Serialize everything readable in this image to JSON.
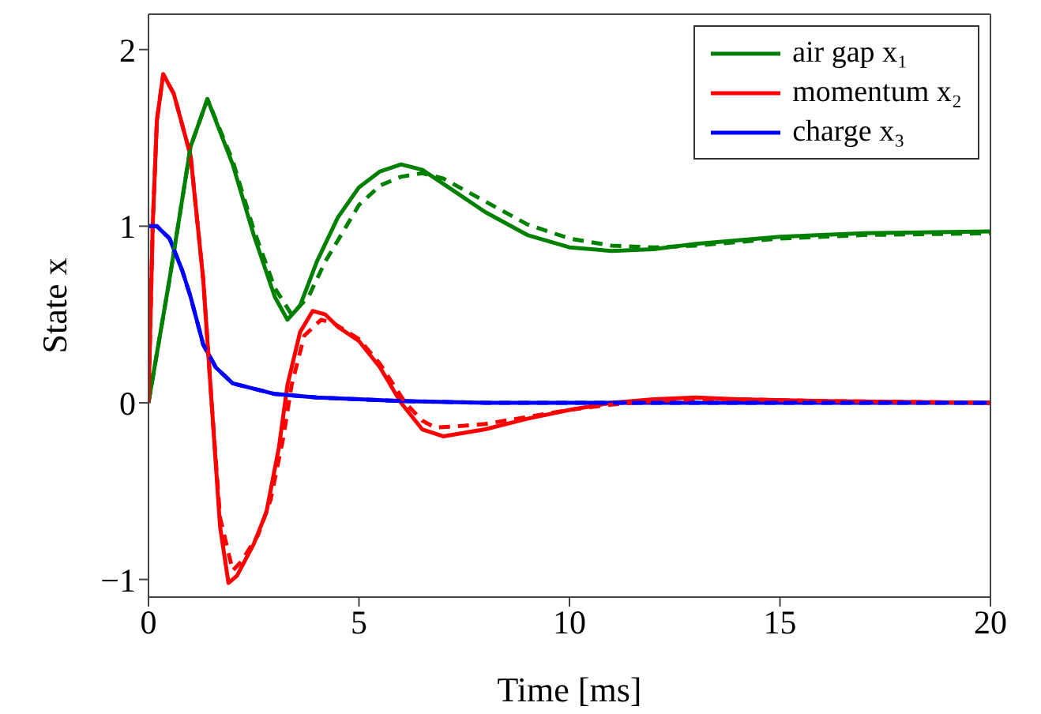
{
  "chart_data": {
    "type": "line",
    "xlabel": "Time [ms]",
    "ylabel": "State x",
    "xlim": [
      0,
      20
    ],
    "ylim": [
      -1.1,
      2.2
    ],
    "xticks": [
      0,
      5,
      10,
      15,
      20
    ],
    "yticks": [
      -1,
      0,
      1,
      2
    ],
    "legend": "top right",
    "marker": "none",
    "series": [
      {
        "name": "air gap x₁",
        "color": "#008000",
        "line_style": "solid",
        "x": [
          0,
          0.5,
          1,
          1.4,
          2,
          2.5,
          3,
          3.3,
          3.6,
          4,
          4.5,
          5,
          5.5,
          6,
          6.5,
          7,
          8,
          9,
          10,
          11,
          12,
          13,
          14,
          15,
          17,
          20
        ],
        "values": [
          0,
          0.7,
          1.45,
          1.72,
          1.35,
          0.95,
          0.6,
          0.47,
          0.55,
          0.8,
          1.05,
          1.22,
          1.31,
          1.35,
          1.32,
          1.24,
          1.08,
          0.95,
          0.88,
          0.86,
          0.87,
          0.9,
          0.92,
          0.94,
          0.96,
          0.97
        ]
      },
      {
        "name": "momentum x₂",
        "color": "#ff0000",
        "line_style": "solid",
        "x": [
          0,
          0.1,
          0.2,
          0.35,
          0.6,
          1,
          1.3,
          1.5,
          1.7,
          1.9,
          2.1,
          2.5,
          2.8,
          3.1,
          3.3,
          3.6,
          3.9,
          4.2,
          4.5,
          5,
          5.5,
          6,
          6.5,
          7,
          8,
          9,
          10,
          11,
          12,
          13,
          14,
          16,
          20
        ],
        "values": [
          0,
          1.0,
          1.6,
          1.86,
          1.75,
          1.4,
          0.7,
          0.0,
          -0.7,
          -1.02,
          -0.98,
          -0.8,
          -0.62,
          -0.25,
          0.1,
          0.4,
          0.52,
          0.5,
          0.43,
          0.35,
          0.2,
          0.0,
          -0.15,
          -0.19,
          -0.15,
          -0.09,
          -0.04,
          0.0,
          0.02,
          0.03,
          0.02,
          0.01,
          0.0
        ]
      },
      {
        "name": "charge x₃",
        "color": "#0000ff",
        "line_style": "solid",
        "x": [
          0,
          0.2,
          0.5,
          0.8,
          1,
          1.3,
          1.6,
          2,
          3,
          4,
          5,
          6,
          8,
          20
        ],
        "values": [
          1.0,
          1.0,
          0.93,
          0.75,
          0.6,
          0.33,
          0.2,
          0.11,
          0.05,
          0.03,
          0.02,
          0.01,
          0,
          0
        ]
      },
      {
        "color": "#008000",
        "line_style": "dashed",
        "x": [
          0,
          0.5,
          1,
          1.4,
          2,
          2.5,
          3,
          3.4,
          3.8,
          4.2,
          5,
          5.5,
          6,
          6.5,
          7,
          8,
          9,
          10,
          11,
          12,
          13,
          14,
          15,
          17,
          20
        ],
        "values": [
          0,
          0.7,
          1.45,
          1.72,
          1.37,
          0.98,
          0.65,
          0.5,
          0.6,
          0.8,
          1.12,
          1.23,
          1.28,
          1.3,
          1.27,
          1.14,
          1.01,
          0.93,
          0.89,
          0.88,
          0.89,
          0.91,
          0.93,
          0.95,
          0.96
        ]
      },
      {
        "color": "#ff0000",
        "line_style": "dashed",
        "x": [
          0,
          0.1,
          0.2,
          0.35,
          0.6,
          1,
          1.3,
          1.5,
          1.7,
          2.0,
          2.2,
          2.6,
          2.9,
          3.2,
          3.4,
          3.7,
          4.1,
          4.4,
          5,
          5.5,
          6.1,
          6.5,
          6.8,
          7.5,
          8,
          9,
          10,
          11,
          12,
          13,
          14,
          16,
          20
        ],
        "values": [
          0,
          1.0,
          1.6,
          1.86,
          1.75,
          1.4,
          0.7,
          0.0,
          -0.65,
          -0.95,
          -0.9,
          -0.75,
          -0.55,
          -0.2,
          0.1,
          0.38,
          0.47,
          0.45,
          0.36,
          0.22,
          0.0,
          -0.1,
          -0.14,
          -0.13,
          -0.12,
          -0.08,
          -0.04,
          -0.01,
          0.01,
          0.02,
          0.02,
          0.01,
          0.0
        ]
      },
      {
        "color": "#0000ff",
        "line_style": "dashed",
        "x": [
          0,
          0.2,
          0.5,
          0.8,
          1,
          1.3,
          1.6,
          2,
          3,
          4,
          5,
          6,
          8,
          20
        ],
        "values": [
          1.0,
          1.0,
          0.93,
          0.75,
          0.6,
          0.33,
          0.2,
          0.11,
          0.05,
          0.03,
          0.02,
          0.01,
          0,
          0
        ]
      }
    ]
  }
}
